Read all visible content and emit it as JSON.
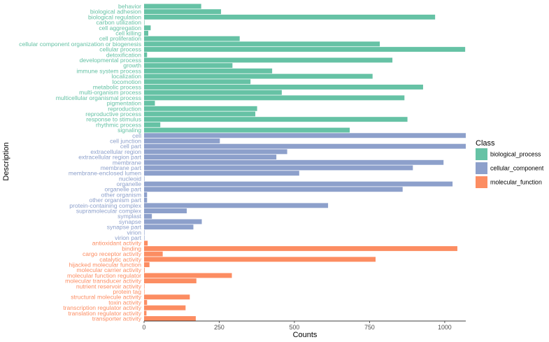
{
  "chart_data": {
    "type": "bar",
    "orientation": "horizontal",
    "xlabel": "Counts",
    "ylabel": "Description",
    "xlim": [
      0,
      1070
    ],
    "xticks": [
      0,
      250,
      500,
      750,
      1000
    ],
    "grid": false,
    "legend": {
      "title": "Class",
      "placement": "right",
      "entries": [
        {
          "name": "biological_process",
          "color": "#66c2a5"
        },
        {
          "name": "cellular_component",
          "color": "#8da0cb"
        },
        {
          "name": "molecular_function",
          "color": "#fc8d62"
        }
      ]
    },
    "categories": [
      {
        "label": "behavior",
        "value": 190,
        "class": "biological_process"
      },
      {
        "label": "biological adhesion",
        "value": 256,
        "class": "biological_process"
      },
      {
        "label": "biological regulation",
        "value": 968,
        "class": "biological_process"
      },
      {
        "label": "carbon utilization",
        "value": 1,
        "class": "biological_process"
      },
      {
        "label": "cell aggregation",
        "value": 22,
        "class": "biological_process"
      },
      {
        "label": "cell killing",
        "value": 14,
        "class": "biological_process"
      },
      {
        "label": "cell proliferation",
        "value": 318,
        "class": "biological_process"
      },
      {
        "label": "cellular component organization or biogenesis",
        "value": 784,
        "class": "biological_process"
      },
      {
        "label": "cellular process",
        "value": 1068,
        "class": "biological_process"
      },
      {
        "label": "detoxification",
        "value": 10,
        "class": "biological_process"
      },
      {
        "label": "developmental process",
        "value": 826,
        "class": "biological_process"
      },
      {
        "label": "growth",
        "value": 294,
        "class": "biological_process"
      },
      {
        "label": "immune system process",
        "value": 426,
        "class": "biological_process"
      },
      {
        "label": "localization",
        "value": 760,
        "class": "biological_process"
      },
      {
        "label": "locomotion",
        "value": 354,
        "class": "biological_process"
      },
      {
        "label": "metabolic process",
        "value": 928,
        "class": "biological_process"
      },
      {
        "label": "multi-organism process",
        "value": 458,
        "class": "biological_process"
      },
      {
        "label": "multicellular organismal process",
        "value": 866,
        "class": "biological_process"
      },
      {
        "label": "pigmentation",
        "value": 36,
        "class": "biological_process"
      },
      {
        "label": "reproduction",
        "value": 376,
        "class": "biological_process"
      },
      {
        "label": "reproductive process",
        "value": 370,
        "class": "biological_process"
      },
      {
        "label": "response to stimulus",
        "value": 876,
        "class": "biological_process"
      },
      {
        "label": "rhythmic process",
        "value": 54,
        "class": "biological_process"
      },
      {
        "label": "signaling",
        "value": 684,
        "class": "biological_process"
      },
      {
        "label": "cell",
        "value": 1070,
        "class": "cellular_component"
      },
      {
        "label": "cell junction",
        "value": 252,
        "class": "cellular_component"
      },
      {
        "label": "cell part",
        "value": 1070,
        "class": "cellular_component"
      },
      {
        "label": "extracellular region",
        "value": 476,
        "class": "cellular_component"
      },
      {
        "label": "extracellular region part",
        "value": 440,
        "class": "cellular_component"
      },
      {
        "label": "membrane",
        "value": 996,
        "class": "cellular_component"
      },
      {
        "label": "membrane part",
        "value": 894,
        "class": "cellular_component"
      },
      {
        "label": "membrane-enclosed lumen",
        "value": 516,
        "class": "cellular_component"
      },
      {
        "label": "nucleoid",
        "value": 1,
        "class": "cellular_component"
      },
      {
        "label": "organelle",
        "value": 1026,
        "class": "cellular_component"
      },
      {
        "label": "organelle part",
        "value": 860,
        "class": "cellular_component"
      },
      {
        "label": "other organism",
        "value": 10,
        "class": "cellular_component"
      },
      {
        "label": "other organism part",
        "value": 10,
        "class": "cellular_component"
      },
      {
        "label": "protein-containing complex",
        "value": 612,
        "class": "cellular_component"
      },
      {
        "label": "supramolecular complex",
        "value": 142,
        "class": "cellular_component"
      },
      {
        "label": "symplast",
        "value": 26,
        "class": "cellular_component"
      },
      {
        "label": "synapse",
        "value": 192,
        "class": "cellular_component"
      },
      {
        "label": "synapse part",
        "value": 164,
        "class": "cellular_component"
      },
      {
        "label": "virion",
        "value": 1,
        "class": "cellular_component"
      },
      {
        "label": "virion part",
        "value": 1,
        "class": "cellular_component"
      },
      {
        "label": "antioxidant activity",
        "value": 12,
        "class": "molecular_function"
      },
      {
        "label": "binding",
        "value": 1042,
        "class": "molecular_function"
      },
      {
        "label": "cargo receptor activity",
        "value": 62,
        "class": "molecular_function"
      },
      {
        "label": "catalytic activity",
        "value": 770,
        "class": "molecular_function"
      },
      {
        "label": "hijacked molecular function",
        "value": 18,
        "class": "molecular_function"
      },
      {
        "label": "molecular carrier activity",
        "value": 2,
        "class": "molecular_function"
      },
      {
        "label": "molecular function regulator",
        "value": 292,
        "class": "molecular_function"
      },
      {
        "label": "molecular transducer activity",
        "value": 174,
        "class": "molecular_function"
      },
      {
        "label": "nutrient reservoir activity",
        "value": 1,
        "class": "molecular_function"
      },
      {
        "label": "protein tag",
        "value": 1,
        "class": "molecular_function"
      },
      {
        "label": "structural molecule activity",
        "value": 152,
        "class": "molecular_function"
      },
      {
        "label": "toxin activity",
        "value": 10,
        "class": "molecular_function"
      },
      {
        "label": "transcription regulator activity",
        "value": 138,
        "class": "molecular_function"
      },
      {
        "label": "translation regulator activity",
        "value": 8,
        "class": "molecular_function"
      },
      {
        "label": "transporter activity",
        "value": 172,
        "class": "molecular_function"
      }
    ]
  }
}
